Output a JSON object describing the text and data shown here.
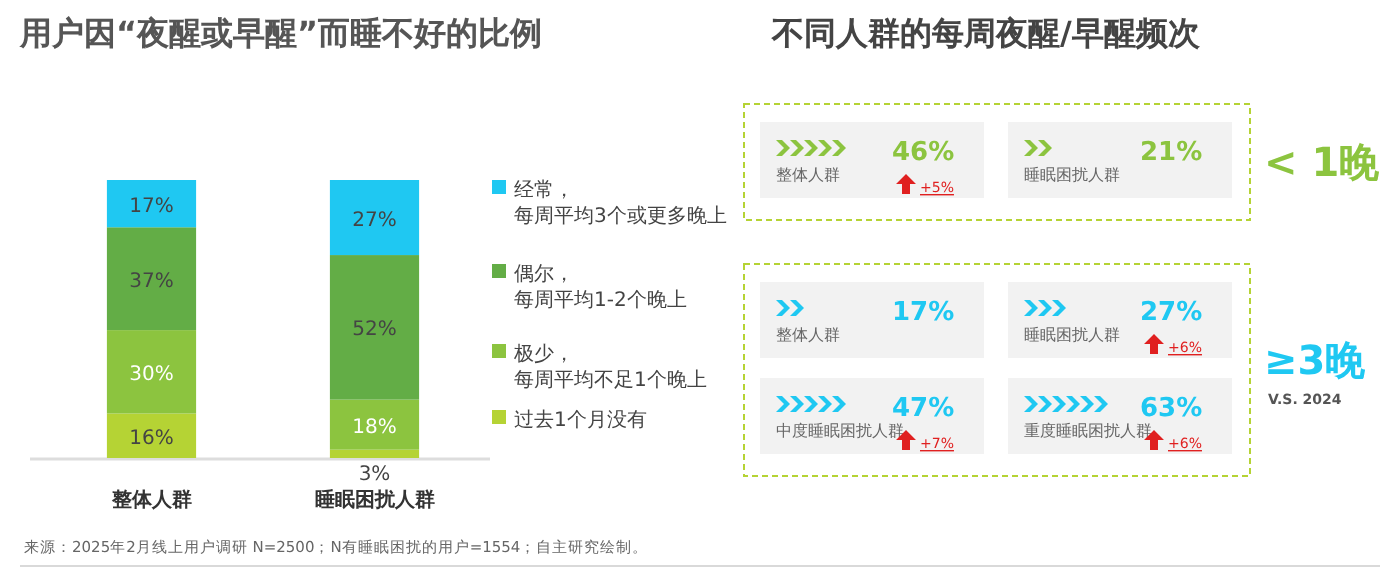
{
  "chart_data": [
    {
      "type": "bar",
      "title": "用户因“夜醒或早醒”而睡不好的比例",
      "categories": [
        "整体人群",
        "睡眠困扰人群"
      ],
      "stacked": true,
      "data_labels": true,
      "legend": "right",
      "annotations": [
        "来源：2025年2月线上用户调研 N=2500；N有睡眠困扰的用户=1554；自主研究绘制。"
      ],
      "series": [
        {
          "name": "过去1个月没有",
          "color": "#b5d334",
          "values": [
            16,
            3
          ],
          "value_labels": [
            "16%",
            "3%"
          ]
        },
        {
          "name": "极少，每周平均不足1个晚上",
          "color": "#8cc43f",
          "values": [
            30,
            18
          ],
          "value_labels": [
            "30%",
            "18%"
          ]
        },
        {
          "name": "偶尔，每周平均1-2个晚上",
          "color": "#63ad46",
          "values": [
            37,
            52
          ],
          "value_labels": [
            "37%",
            "52%"
          ]
        },
        {
          "name": "经常，每周平均3个或更多晚上",
          "color": "#1fc8f2",
          "values": [
            17,
            27
          ],
          "value_labels": [
            "17%",
            "27%"
          ]
        }
      ]
    },
    {
      "type": "other",
      "title": "不同人群的每周夜醒/早醒频次",
      "annotations": [
        "< 1晚",
        "整体人群",
        "46%",
        "+5%",
        "睡眠困扰人群",
        "21%",
        "≥3晚",
        "V.S. 2024",
        "整体人群",
        "17%",
        "睡眠困扰人群",
        "27%",
        "+6%",
        "中度睡眠困扰人群",
        "47%",
        "+7%",
        "重度睡眠困扰人群",
        "63%",
        "+6%"
      ]
    }
  ]
}
